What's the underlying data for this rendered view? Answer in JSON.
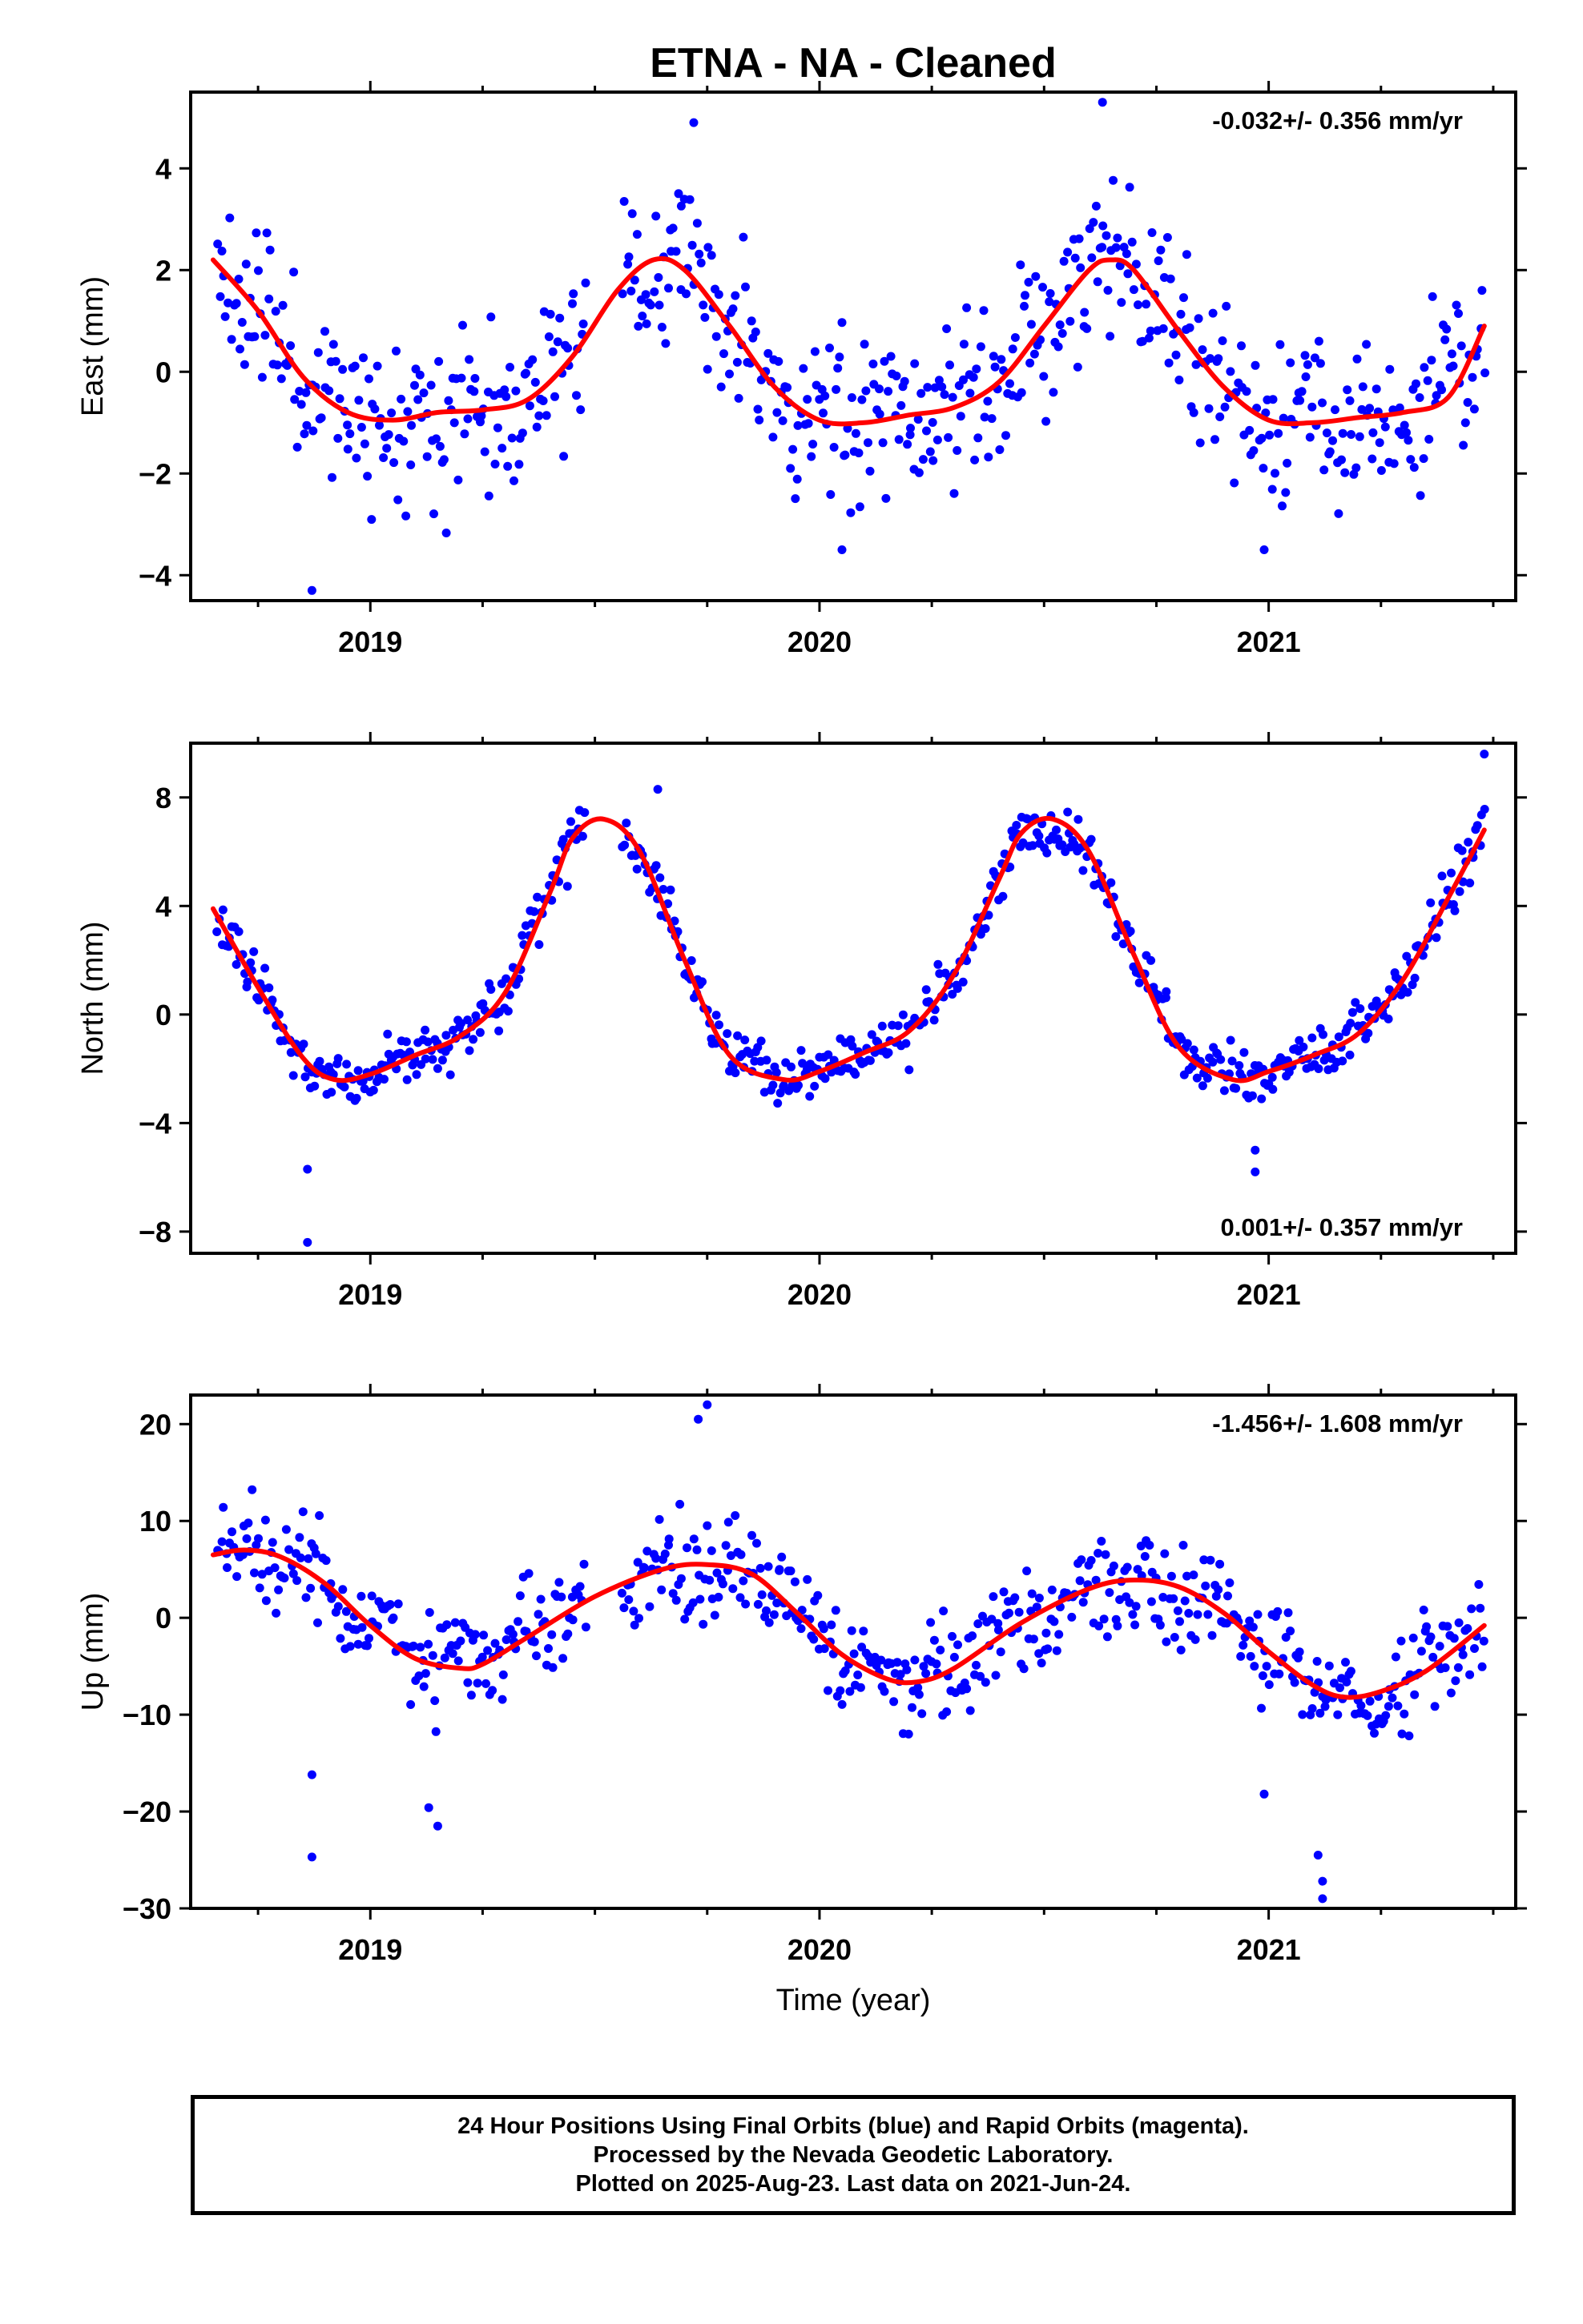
{
  "title": "ETNA  - NA - Cleaned",
  "xlabel": "Time (year)",
  "footer": {
    "line1": "24 Hour Positions Using Final Orbits (blue) and Rapid Orbits (magenta).",
    "line2": "Processed by the Nevada Geodetic Laboratory.",
    "line3": "Plotted on 2025-Aug-23. Last data on 2021-Jun-24."
  },
  "colors": {
    "points": "#0000ff",
    "fit": "#ff0000",
    "axes": "#000000"
  },
  "chart_data": [
    {
      "type": "scatter",
      "ylabel": "East (mm)",
      "rate": "-0.032+/- 0.356 mm/yr",
      "rate_position": "top-right",
      "xlim": [
        2018.6,
        2021.55
      ],
      "ylim": [
        -4.5,
        5.5
      ],
      "xticks": [
        2019,
        2020,
        2021
      ],
      "xtick_labels": [
        "2019",
        "2020",
        "2021"
      ],
      "yticks": [
        -4,
        -2,
        0,
        2,
        4
      ],
      "ytick_labels": [
        "−4",
        "−2",
        "0",
        "2",
        "4"
      ],
      "fit_curve": {
        "x": [
          2018.65,
          2018.75,
          2018.85,
          2018.95,
          2019.05,
          2019.15,
          2019.25,
          2019.35,
          2019.45,
          2019.55,
          2019.63,
          2019.7,
          2019.8,
          2019.9,
          2020.0,
          2020.1,
          2020.2,
          2020.3,
          2020.4,
          2020.5,
          2020.6,
          2020.65,
          2020.7,
          2020.8,
          2020.9,
          2021.0,
          2021.1,
          2021.2,
          2021.3,
          2021.4,
          2021.48
        ],
        "y": [
          2.2,
          1.2,
          -0.1,
          -0.8,
          -0.95,
          -0.8,
          -0.75,
          -0.55,
          0.3,
          1.6,
          2.2,
          2.0,
          0.9,
          -0.3,
          -0.95,
          -1.0,
          -0.85,
          -0.7,
          -0.2,
          0.9,
          2.0,
          2.2,
          2.0,
          0.8,
          -0.3,
          -0.95,
          -1.0,
          -0.9,
          -0.8,
          -0.5,
          0.9
        ]
      },
      "scatter_model": {
        "n_points": 620,
        "x_start": 2018.66,
        "x_end": 2021.48,
        "spread": 1.2,
        "seed": 11,
        "gap": [
          2019.48,
          2019.56
        ],
        "outliers": [
          [
            2018.87,
            -4.3
          ],
          [
            2019.72,
            4.9
          ],
          [
            2020.63,
            5.3
          ],
          [
            2020.99,
            -3.5
          ],
          [
            2020.05,
            -3.5
          ]
        ]
      }
    },
    {
      "type": "scatter",
      "ylabel": "North (mm)",
      "rate": "0.001+/- 0.357 mm/yr",
      "rate_position": "bottom-right",
      "xlim": [
        2018.6,
        2021.55
      ],
      "ylim": [
        -8.8,
        10
      ],
      "xticks": [
        2019,
        2020,
        2021
      ],
      "xtick_labels": [
        "2019",
        "2020",
        "2021"
      ],
      "yticks": [
        -8,
        -4,
        0,
        4,
        8
      ],
      "ytick_labels": [
        "−8",
        "−4",
        "0",
        "4",
        "8"
      ],
      "fit_curve": {
        "x": [
          2018.65,
          2018.75,
          2018.85,
          2018.92,
          2019.0,
          2019.1,
          2019.2,
          2019.3,
          2019.4,
          2019.45,
          2019.52,
          2019.6,
          2019.7,
          2019.8,
          2019.92,
          2020.0,
          2020.1,
          2020.2,
          2020.3,
          2020.4,
          2020.45,
          2020.52,
          2020.6,
          2020.7,
          2020.8,
          2020.92,
          2021.0,
          2021.1,
          2021.2,
          2021.3,
          2021.4,
          2021.48
        ],
        "y": [
          3.9,
          1.0,
          -1.6,
          -2.4,
          -2.2,
          -1.5,
          -0.8,
          0.8,
          4.5,
          6.5,
          7.2,
          6.0,
          2.0,
          -1.5,
          -2.4,
          -2.1,
          -1.4,
          -0.6,
          1.5,
          5.0,
          6.7,
          7.2,
          6.0,
          2.2,
          -1.2,
          -2.4,
          -2.1,
          -1.5,
          -0.7,
          1.3,
          4.3,
          6.8
        ]
      },
      "scatter_model": {
        "n_points": 620,
        "x_start": 2018.66,
        "x_end": 2021.48,
        "spread": 0.75,
        "seed": 23,
        "gap": [
          2019.48,
          2019.56
        ],
        "outliers": [
          [
            2018.86,
            -8.4
          ],
          [
            2018.86,
            -5.7
          ],
          [
            2020.97,
            -5.8
          ],
          [
            2020.97,
            -5.0
          ],
          [
            2021.48,
            9.6
          ],
          [
            2019.64,
            8.3
          ]
        ]
      }
    },
    {
      "type": "scatter",
      "ylabel": "Up (mm)",
      "rate": "-1.456+/- 1.608 mm/yr",
      "rate_position": "top-right",
      "xlim": [
        2018.6,
        2021.55
      ],
      "ylim": [
        -30,
        23
      ],
      "xticks": [
        2019,
        2020,
        2021
      ],
      "xtick_labels": [
        "2019",
        "2020",
        "2021"
      ],
      "yticks": [
        -30,
        -20,
        -10,
        0,
        10,
        20
      ],
      "ytick_labels": [
        "−30",
        "−20",
        "−10",
        "0",
        "10",
        "20"
      ],
      "fit_curve": {
        "x": [
          2018.65,
          2018.72,
          2018.8,
          2018.9,
          2019.0,
          2019.1,
          2019.2,
          2019.25,
          2019.35,
          2019.5,
          2019.65,
          2019.75,
          2019.85,
          2019.95,
          2020.05,
          2020.15,
          2020.22,
          2020.3,
          2020.45,
          2020.6,
          2020.7,
          2020.8,
          2020.9,
          2021.0,
          2021.1,
          2021.17,
          2021.25,
          2021.35,
          2021.48
        ],
        "y": [
          6.5,
          7.0,
          6.3,
          3.5,
          -0.8,
          -4.2,
          -5.2,
          -4.8,
          -2.0,
          2.2,
          5.0,
          5.5,
          4.5,
          0.5,
          -3.8,
          -6.3,
          -6.6,
          -5.2,
          -0.5,
          3.0,
          3.9,
          3.2,
          0.5,
          -3.5,
          -7.0,
          -8.2,
          -7.6,
          -5.5,
          -0.8
        ]
      },
      "scatter_model": {
        "n_points": 620,
        "x_start": 2018.66,
        "x_end": 2021.48,
        "spread": 4.0,
        "seed": 37,
        "gap": [
          2019.48,
          2019.56
        ],
        "outliers": [
          [
            2018.87,
            -24.7
          ],
          [
            2018.87,
            -16.2
          ],
          [
            2019.73,
            20.5
          ],
          [
            2019.75,
            22.0
          ],
          [
            2021.11,
            -24.5
          ],
          [
            2021.12,
            -27.2
          ],
          [
            2021.12,
            -29.0
          ],
          [
            2019.15,
            -21.5
          ],
          [
            2019.13,
            -19.6
          ],
          [
            2020.99,
            -18.2
          ]
        ]
      }
    }
  ]
}
